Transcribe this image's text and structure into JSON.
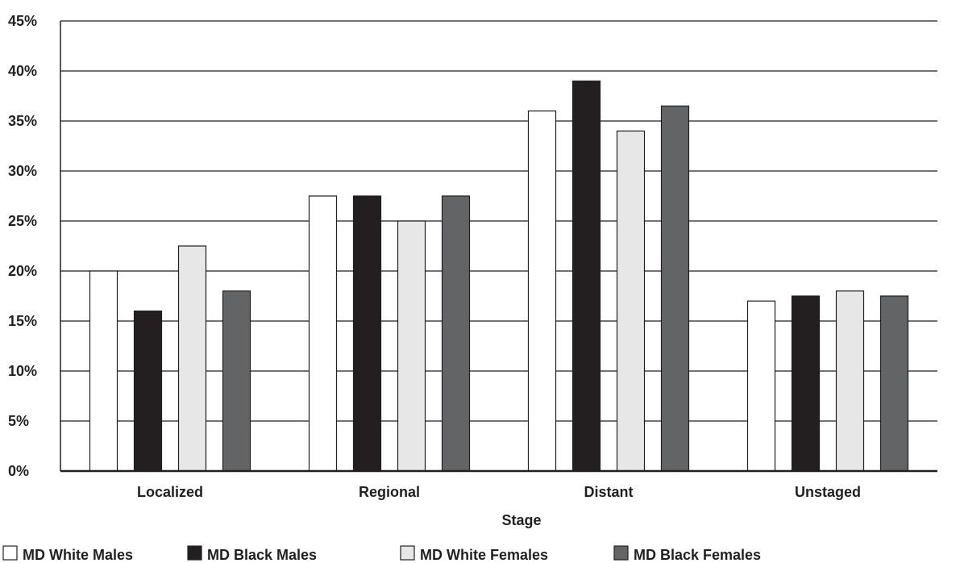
{
  "chart_data": {
    "type": "bar",
    "title": "",
    "xlabel": "Stage",
    "ylabel": "",
    "ylim": [
      0,
      45
    ],
    "y_ticks": [
      0,
      5,
      10,
      15,
      20,
      25,
      30,
      35,
      40,
      45
    ],
    "y_tick_labels": [
      "0%",
      "5%",
      "10%",
      "15%",
      "20%",
      "25%",
      "30%",
      "35%",
      "40%",
      "45%"
    ],
    "grid": "horizontal",
    "legend_position": "bottom",
    "categories": [
      "Localized",
      "Regional",
      "Distant",
      "Unstaged"
    ],
    "series": [
      {
        "name": "MD White Males",
        "color": "#ffffff",
        "values": [
          20,
          27.5,
          36,
          17
        ]
      },
      {
        "name": "MD Black Males",
        "color": "#231f20",
        "values": [
          16,
          27.5,
          39,
          17.5
        ]
      },
      {
        "name": "MD White Females",
        "color": "#e6e7e6",
        "values": [
          22.5,
          25,
          34,
          18
        ]
      },
      {
        "name": "MD Black Females",
        "color": "#636466",
        "values": [
          18,
          27.5,
          36.5,
          17.5
        ]
      }
    ]
  }
}
